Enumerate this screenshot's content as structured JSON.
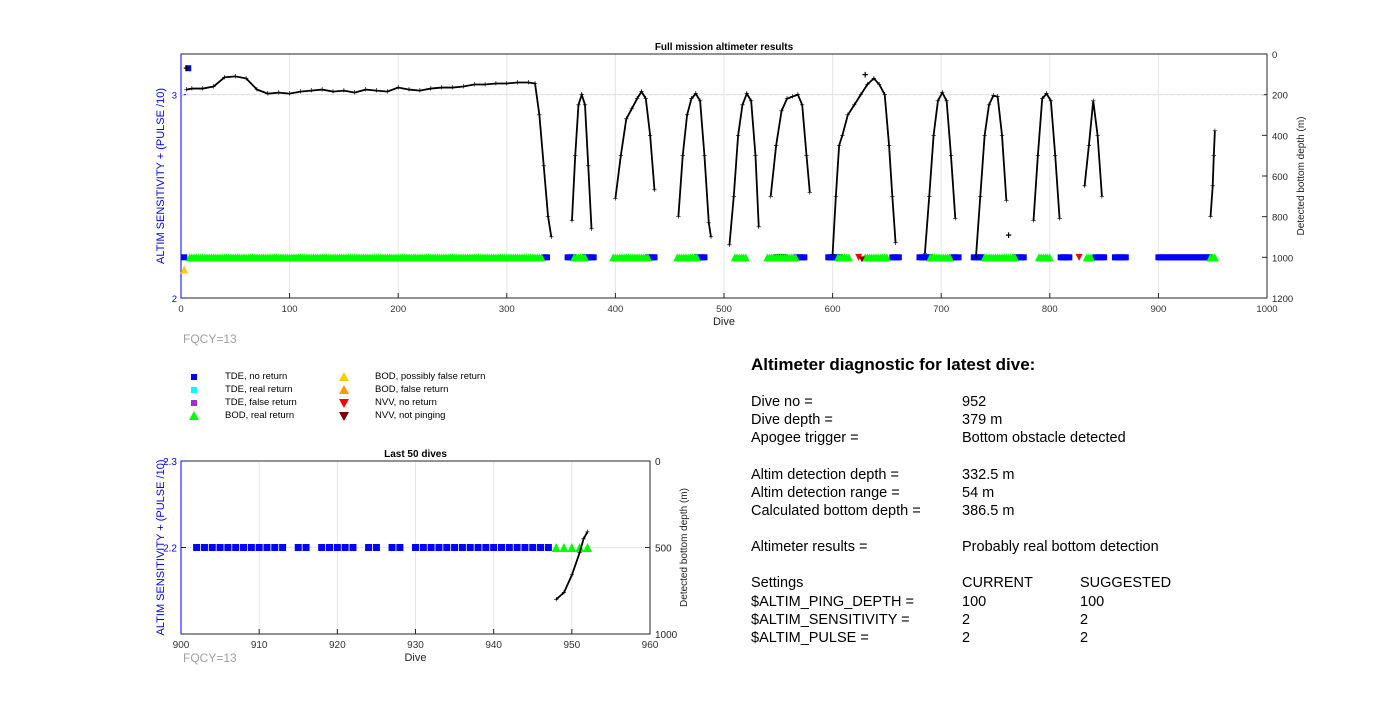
{
  "chart_data": [
    {
      "type": "scatter",
      "title": "Full mission altimeter results",
      "xlabel": "Dive",
      "ylabel_left": "ALTIM SENSITIVITY + (PULSE /10)",
      "ylabel_right": "Detected bottom depth (m)",
      "xlim": [
        0,
        1000
      ],
      "ylim_left": [
        2,
        3.2
      ],
      "ylim_right": [
        1200,
        0
      ],
      "xticks": [
        "0",
        "100",
        "200",
        "300",
        "400",
        "500",
        "600",
        "700",
        "800",
        "900",
        "1000"
      ],
      "yticks_left": [
        "2",
        "3"
      ],
      "yticks_right": [
        "0",
        "200",
        "400",
        "600",
        "800",
        "1000",
        "1200"
      ],
      "grid": true,
      "depth_segments": [
        [
          [
            5,
            175
          ],
          [
            10,
            170
          ],
          [
            20,
            170
          ],
          [
            30,
            160
          ],
          [
            40,
            115
          ],
          [
            50,
            110
          ],
          [
            60,
            120
          ],
          [
            70,
            175
          ],
          [
            80,
            195
          ],
          [
            90,
            190
          ],
          [
            100,
            195
          ],
          [
            110,
            185
          ],
          [
            120,
            180
          ],
          [
            130,
            175
          ],
          [
            140,
            185
          ],
          [
            150,
            180
          ],
          [
            160,
            190
          ],
          [
            170,
            175
          ],
          [
            180,
            180
          ],
          [
            190,
            185
          ],
          [
            200,
            165
          ],
          [
            210,
            175
          ],
          [
            220,
            180
          ],
          [
            230,
            170
          ],
          [
            240,
            165
          ],
          [
            250,
            165
          ],
          [
            260,
            160
          ],
          [
            270,
            150
          ],
          [
            280,
            150
          ],
          [
            290,
            145
          ],
          [
            300,
            145
          ],
          [
            310,
            140
          ],
          [
            320,
            140
          ],
          [
            326,
            145
          ],
          [
            330,
            300
          ],
          [
            334,
            550
          ],
          [
            338,
            800
          ],
          [
            341,
            900
          ]
        ],
        [
          [
            360,
            820
          ],
          [
            363,
            500
          ],
          [
            366,
            250
          ],
          [
            369,
            200
          ],
          [
            372,
            250
          ],
          [
            375,
            550
          ],
          [
            378,
            860
          ]
        ],
        [
          [
            400,
            710
          ],
          [
            405,
            500
          ],
          [
            410,
            320
          ],
          [
            415,
            270
          ],
          [
            420,
            220
          ],
          [
            424,
            185
          ],
          [
            428,
            220
          ],
          [
            432,
            400
          ],
          [
            436,
            670
          ]
        ],
        [
          [
            458,
            800
          ],
          [
            462,
            500
          ],
          [
            466,
            300
          ],
          [
            470,
            220
          ],
          [
            474,
            195
          ],
          [
            478,
            230
          ],
          [
            482,
            500
          ],
          [
            486,
            830
          ],
          [
            488,
            900
          ]
        ],
        [
          [
            505,
            940
          ],
          [
            509,
            700
          ],
          [
            513,
            400
          ],
          [
            517,
            250
          ],
          [
            521,
            195
          ],
          [
            525,
            230
          ],
          [
            529,
            500
          ],
          [
            532,
            850
          ]
        ],
        [
          [
            543,
            700
          ],
          [
            548,
            450
          ],
          [
            553,
            280
          ],
          [
            558,
            220
          ],
          [
            563,
            210
          ],
          [
            568,
            200
          ],
          [
            572,
            250
          ],
          [
            576,
            500
          ],
          [
            579,
            680
          ]
        ],
        [
          [
            600,
            985
          ],
          [
            603,
            700
          ],
          [
            606,
            450
          ],
          [
            609,
            400
          ],
          [
            614,
            300
          ],
          [
            620,
            250
          ],
          [
            626,
            200
          ],
          [
            632,
            150
          ],
          [
            638,
            120
          ],
          [
            643,
            150
          ],
          [
            648,
            200
          ],
          [
            652,
            450
          ],
          [
            655,
            700
          ],
          [
            658,
            930
          ]
        ],
        [
          [
            685,
            980
          ],
          [
            689,
            700
          ],
          [
            693,
            400
          ],
          [
            697,
            230
          ],
          [
            701,
            190
          ],
          [
            705,
            230
          ],
          [
            709,
            500
          ],
          [
            713,
            810
          ]
        ],
        [
          [
            732,
            1000
          ],
          [
            736,
            700
          ],
          [
            740,
            400
          ],
          [
            744,
            250
          ],
          [
            748,
            205
          ],
          [
            752,
            210
          ],
          [
            756,
            400
          ],
          [
            760,
            720
          ]
        ],
        [
          [
            785,
            820
          ],
          [
            789,
            500
          ],
          [
            793,
            220
          ],
          [
            797,
            195
          ],
          [
            801,
            230
          ],
          [
            805,
            500
          ],
          [
            809,
            810
          ]
        ],
        [
          [
            832,
            650
          ],
          [
            836,
            450
          ],
          [
            840,
            230
          ],
          [
            844,
            400
          ],
          [
            848,
            700
          ]
        ],
        [
          [
            948,
            800
          ],
          [
            950,
            650
          ],
          [
            951,
            500
          ],
          [
            952,
            379
          ]
        ]
      ],
      "depth_outliers": [
        [
          5,
          70
        ],
        [
          762,
          890
        ],
        [
          630,
          100
        ]
      ],
      "tde_no_return_y": 2.2,
      "tde_no_return_dives": [
        [
          3,
          3
        ],
        [
          335,
          338
        ],
        [
          356,
          362
        ],
        [
          372,
          380
        ],
        [
          430,
          436
        ],
        [
          476,
          482
        ],
        [
          548,
          556
        ],
        [
          566,
          574
        ],
        [
          596,
          606
        ],
        [
          655,
          662
        ],
        [
          680,
          690
        ],
        [
          710,
          716
        ],
        [
          730,
          738
        ],
        [
          768,
          776
        ],
        [
          810,
          818
        ],
        [
          842,
          850
        ],
        [
          860,
          870
        ],
        [
          900,
          948
        ]
      ],
      "bod_real_return_y": 2.2,
      "bod_real_return_dives": [
        [
          8,
          333
        ],
        [
          362,
          372
        ],
        [
          398,
          430
        ],
        [
          457,
          476
        ],
        [
          510,
          520
        ],
        [
          540,
          566
        ],
        [
          605,
          615
        ],
        [
          630,
          650
        ],
        [
          690,
          708
        ],
        [
          740,
          768
        ],
        [
          790,
          800
        ],
        [
          834,
          838
        ],
        [
          948,
          952
        ]
      ],
      "bod_false_return": [
        [
          3,
          2.14
        ]
      ],
      "nvv_no_return": [
        [
          624,
          2.2
        ],
        [
          827,
          2.2
        ]
      ],
      "nvv_not_pinging": [
        [
          627,
          2.2
        ]
      ],
      "tde_no_return_high": [
        [
          3,
          3.13
        ]
      ]
    },
    {
      "type": "scatter",
      "title": "Last 50 dives",
      "xlabel": "Dive",
      "ylabel_left": "ALTIM SENSITIVITY + (PULSE /10)",
      "ylabel_right": "Detected bottom depth (m)",
      "xlim": [
        900,
        960
      ],
      "ylim_left": [
        2.1,
        2.3
      ],
      "ylim_right": [
        1000,
        0
      ],
      "xticks": [
        "900",
        "910",
        "920",
        "930",
        "940",
        "950",
        "960"
      ],
      "yticks_left": [
        "2.2",
        "2.3"
      ],
      "yticks_right": [
        "0",
        "500",
        "1000"
      ],
      "grid": true,
      "tde_no_return_dives": [
        902,
        903,
        904,
        905,
        906,
        907,
        908,
        909,
        910,
        911,
        912,
        913,
        915,
        916,
        918,
        919,
        920,
        921,
        922,
        924,
        925,
        927,
        928,
        930,
        931,
        932,
        933,
        934,
        935,
        936,
        937,
        938,
        939,
        940,
        941,
        942,
        943,
        944,
        945,
        946,
        947
      ],
      "bod_real_return_dives": [
        948,
        949,
        950,
        951,
        952
      ],
      "depth_line": [
        [
          948,
          800
        ],
        [
          949,
          760
        ],
        [
          950,
          660
        ],
        [
          951,
          530
        ],
        [
          951.5,
          450
        ],
        [
          952,
          410
        ]
      ]
    }
  ],
  "fqcy_label": "FQCY=13",
  "legend": [
    {
      "label": "TDE, no return",
      "shape": "square",
      "color": "#0000ff"
    },
    {
      "label": "TDE, real return",
      "shape": "square",
      "color": "#00ffff"
    },
    {
      "label": "TDE, false return",
      "shape": "square",
      "color": "#9933cc"
    },
    {
      "label": "BOD, real return",
      "shape": "triangle-up",
      "color": "#00ff00"
    },
    {
      "label": "BOD, possibly false return",
      "shape": "triangle-up",
      "color": "#ffcc00"
    },
    {
      "label": "BOD, false return",
      "shape": "triangle-up",
      "color": "#ff9900"
    },
    {
      "label": "NVV, no return",
      "shape": "triangle-down",
      "color": "#ff0000"
    },
    {
      "label": "NVV, not pinging",
      "shape": "triangle-down",
      "color": "#800000"
    }
  ],
  "diagnostic": {
    "title": "Altimeter diagnostic for latest dive:",
    "dive_no_label": "Dive no =",
    "dive_no": "952",
    "dive_depth_label": "Dive depth =",
    "dive_depth": "379 m",
    "apogee_label": "Apogee trigger =",
    "apogee": "Bottom obstacle detected",
    "det_depth_label": "Altim detection depth =",
    "det_depth": "332.5 m",
    "det_range_label": "Altim detection range =",
    "det_range": "54 m",
    "calc_depth_label": "Calculated bottom depth =",
    "calc_depth": "386.5 m",
    "results_label": "Altimeter results =",
    "results": "Probably real bottom detection",
    "settings_label": "Settings",
    "current_label": "CURRENT",
    "suggested_label": "SUGGESTED",
    "ping_depth_label": "$ALTIM_PING_DEPTH =",
    "ping_depth_cur": "100",
    "ping_depth_sug": "100",
    "sensitivity_label": "$ALTIM_SENSITIVITY =",
    "sensitivity_cur": "2",
    "sensitivity_sug": "2",
    "pulse_label": "$ALTIM_PULSE =",
    "pulse_cur": "2",
    "pulse_sug": "2"
  },
  "colors": {
    "axis_left": "#0000ff",
    "depth": "#000000",
    "grid": "#e6e6e6"
  }
}
